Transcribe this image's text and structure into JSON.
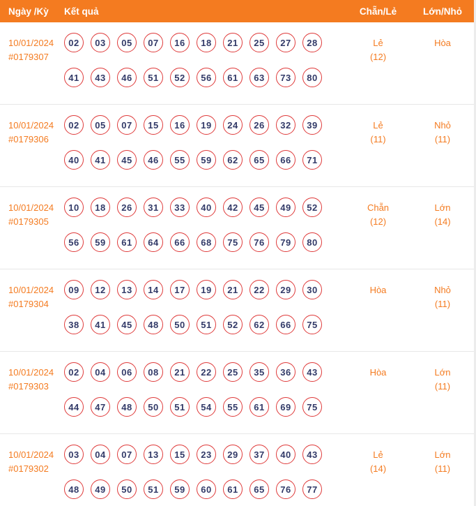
{
  "header": {
    "col_date": "Ngày /Kỳ",
    "col_result": "Kết quả",
    "col_even_odd": "Chẵn/Lẻ",
    "col_big_small": "Lớn/Nhỏ"
  },
  "colors": {
    "header_bg": "#F47B20",
    "header_text": "#FFFFFF",
    "accent_orange": "#F47B20",
    "ball_border": "#DF3B3B",
    "ball_text": "#323A68",
    "row_divider": "#E7E7E7",
    "page_bg": "#FFFFFF"
  },
  "rows": [
    {
      "date": "10/01/2024",
      "draw_id": "#0179307",
      "numbers_line1": [
        "02",
        "03",
        "05",
        "07",
        "16",
        "18",
        "21",
        "25",
        "27",
        "28"
      ],
      "numbers_line2": [
        "41",
        "43",
        "46",
        "51",
        "52",
        "56",
        "61",
        "63",
        "73",
        "80"
      ],
      "even_odd": "Lẻ",
      "even_odd_count": "(12)",
      "big_small": "Hòa",
      "big_small_count": ""
    },
    {
      "date": "10/01/2024",
      "draw_id": "#0179306",
      "numbers_line1": [
        "02",
        "05",
        "07",
        "15",
        "16",
        "19",
        "24",
        "26",
        "32",
        "39"
      ],
      "numbers_line2": [
        "40",
        "41",
        "45",
        "46",
        "55",
        "59",
        "62",
        "65",
        "66",
        "71"
      ],
      "even_odd": "Lẻ",
      "even_odd_count": "(11)",
      "big_small": "Nhỏ",
      "big_small_count": "(11)"
    },
    {
      "date": "10/01/2024",
      "draw_id": "#0179305",
      "numbers_line1": [
        "10",
        "18",
        "26",
        "31",
        "33",
        "40",
        "42",
        "45",
        "49",
        "52"
      ],
      "numbers_line2": [
        "56",
        "59",
        "61",
        "64",
        "66",
        "68",
        "75",
        "76",
        "79",
        "80"
      ],
      "even_odd": "Chẵn",
      "even_odd_count": "(12)",
      "big_small": "Lớn",
      "big_small_count": "(14)"
    },
    {
      "date": "10/01/2024",
      "draw_id": "#0179304",
      "numbers_line1": [
        "09",
        "12",
        "13",
        "14",
        "17",
        "19",
        "21",
        "22",
        "29",
        "30"
      ],
      "numbers_line2": [
        "38",
        "41",
        "45",
        "48",
        "50",
        "51",
        "52",
        "62",
        "66",
        "75"
      ],
      "even_odd": "Hòa",
      "even_odd_count": "",
      "big_small": "Nhỏ",
      "big_small_count": "(11)"
    },
    {
      "date": "10/01/2024",
      "draw_id": "#0179303",
      "numbers_line1": [
        "02",
        "04",
        "06",
        "08",
        "21",
        "22",
        "25",
        "35",
        "36",
        "43"
      ],
      "numbers_line2": [
        "44",
        "47",
        "48",
        "50",
        "51",
        "54",
        "55",
        "61",
        "69",
        "75"
      ],
      "even_odd": "Hòa",
      "even_odd_count": "",
      "big_small": "Lớn",
      "big_small_count": "(11)"
    },
    {
      "date": "10/01/2024",
      "draw_id": "#0179302",
      "numbers_line1": [
        "03",
        "04",
        "07",
        "13",
        "15",
        "23",
        "29",
        "37",
        "40",
        "43"
      ],
      "numbers_line2": [
        "48",
        "49",
        "50",
        "51",
        "59",
        "60",
        "61",
        "65",
        "76",
        "77"
      ],
      "even_odd": "Lẻ",
      "even_odd_count": "(14)",
      "big_small": "Lớn",
      "big_small_count": "(11)"
    }
  ]
}
